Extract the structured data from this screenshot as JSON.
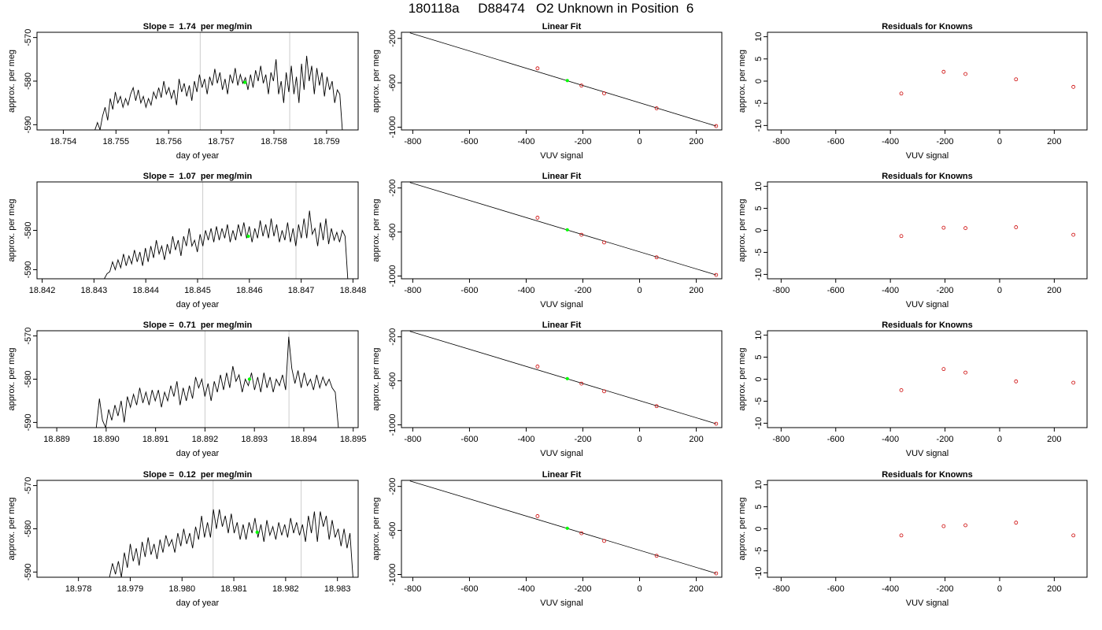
{
  "page_title": "180118a     D88474   O2 Unknown in Position  6",
  "chart_data": [
    {
      "type": "line",
      "row": 0,
      "col": 0,
      "title": "Slope =  1.74  per meg/min",
      "xlabel": "day of year",
      "ylabel": "approx. per meg",
      "xlim": [
        18.7535,
        18.7596
      ],
      "ylim": [
        -591.2,
        -568.8
      ],
      "xticks": [
        "18.754",
        "18.755",
        "18.756",
        "18.757",
        "18.758",
        "18.759"
      ],
      "yticks": [
        "-590",
        "-580",
        "-570"
      ],
      "vlines": [
        18.7566,
        18.7583
      ],
      "series": [
        {
          "x_start": 18.7546,
          "x_end": 18.7593,
          "y": [
            -591.2,
            -589.5,
            -591.2,
            -588,
            -586,
            -589,
            -584,
            -586.5,
            -582.5,
            -585,
            -583.5,
            -586,
            -584,
            -585.5,
            -583,
            -581.5,
            -584.5,
            -582,
            -585,
            -583.5,
            -586,
            -584,
            -585.5,
            -582.5,
            -584,
            -581.5,
            -583.8,
            -580,
            -583,
            -581.5,
            -584,
            -582,
            -585.5,
            -579.5,
            -582.5,
            -580.5,
            -583.5,
            -581,
            -584.5,
            -580,
            -582.5,
            -578.5,
            -581.5,
            -579.5,
            -583,
            -579,
            -581,
            -577.2,
            -580.5,
            -578,
            -582,
            -579.5,
            -583,
            -578.5,
            -580.5,
            -577,
            -581,
            -578.5,
            -580.5,
            -579.2,
            -582,
            -578.5,
            -581.5,
            -577.5,
            -580,
            -576.5,
            -580.5,
            -578.5,
            -583,
            -578,
            -580,
            -575,
            -583,
            -580,
            -585,
            -578,
            -582.5,
            -576.5,
            -583,
            -579,
            -585,
            -576,
            -582,
            -574.2,
            -580,
            -576.5,
            -583,
            -577,
            -581,
            -578,
            -583.5,
            -579,
            -582,
            -580,
            -585,
            -582,
            -583,
            -591.2
          ]
        }
      ],
      "marker": {
        "x": 18.75745,
        "y": -580.3,
        "color": "#00ff00"
      }
    },
    {
      "type": "scatter",
      "row": 0,
      "col": 1,
      "title": "Linear Fit",
      "xlabel": "VUV signal",
      "ylabel": "approx. per meg",
      "xlim": [
        -840,
        290
      ],
      "ylim": [
        -1025,
        -145
      ],
      "xticks": [
        "-800",
        "-600",
        "-400",
        "-200",
        "0",
        "200"
      ],
      "yticks": [
        "-1000",
        "-600",
        "-200"
      ],
      "fit": {
        "x": [
          -810,
          270
        ],
        "y": [
          -150,
          -990
        ]
      },
      "points": {
        "x": [
          -360,
          -205,
          -125,
          60,
          270
        ],
        "y": [
          -470,
          -625,
          -695,
          -830,
          -990
        ],
        "color": "#cc0000"
      },
      "marker": {
        "x": -255,
        "y": -580,
        "color": "#00ff00"
      }
    },
    {
      "type": "scatter",
      "row": 0,
      "col": 2,
      "title": "Residuals for Knowns",
      "xlabel": "VUV signal",
      "ylabel": "",
      "xlim": [
        -850,
        320
      ],
      "ylim": [
        -11,
        11
      ],
      "xticks": [
        "-800",
        "-600",
        "-400",
        "-200",
        "0",
        "200"
      ],
      "yticks": [
        "-10",
        "-5",
        "0",
        "5",
        "10"
      ],
      "points": {
        "x": [
          -360,
          -205,
          -125,
          60,
          270
        ],
        "y": [
          -2.8,
          2.1,
          1.6,
          0.4,
          -1.3
        ],
        "color": "#cc0000"
      }
    },
    {
      "type": "line",
      "row": 1,
      "col": 0,
      "title": "Slope =  1.07  per meg/min",
      "xlabel": "day of year",
      "ylabel": "approx. per meg",
      "xlim": [
        18.8419,
        18.8481
      ],
      "ylim": [
        -592.3,
        -567.7
      ],
      "xticks": [
        "18.842",
        "18.843",
        "18.844",
        "18.845",
        "18.846",
        "18.847",
        "18.848"
      ],
      "yticks": [
        "-590",
        "-580"
      ],
      "vlines": [
        18.8451,
        18.8469
      ],
      "series": [
        {
          "x_start": 18.8432,
          "x_end": 18.8479,
          "y": [
            -592.3,
            -591,
            -590.5,
            -588,
            -590,
            -587.5,
            -589.5,
            -586,
            -589,
            -586.5,
            -588.5,
            -585,
            -588,
            -585.5,
            -589,
            -584.5,
            -588,
            -584,
            -587,
            -582.5,
            -586,
            -584,
            -587.5,
            -583.5,
            -586,
            -581.5,
            -585,
            -582.5,
            -586.5,
            -581.5,
            -584,
            -579.5,
            -584,
            -582.5,
            -585.5,
            -581,
            -584,
            -580,
            -582.5,
            -579.5,
            -583,
            -579,
            -582.5,
            -579.5,
            -582,
            -578.5,
            -583,
            -580,
            -582.5,
            -578.5,
            -581.5,
            -578,
            -582,
            -579,
            -583,
            -579.5,
            -582,
            -577.5,
            -581.5,
            -578.5,
            -582,
            -577,
            -581.5,
            -578.5,
            -583,
            -580,
            -582.5,
            -578,
            -583,
            -579.5,
            -584,
            -578.5,
            -582,
            -577,
            -582,
            -575,
            -581,
            -579.5,
            -584,
            -578,
            -582.5,
            -577,
            -583.5,
            -579.5,
            -582.5,
            -580.5,
            -583,
            -580,
            -581.5,
            -592.3
          ]
        }
      ],
      "marker": {
        "x": 18.84598,
        "y": -581.5,
        "color": "#00ff00"
      }
    },
    {
      "type": "scatter",
      "row": 1,
      "col": 1,
      "title": "Linear Fit",
      "xlabel": "VUV signal",
      "ylabel": "approx. per meg",
      "xlim": [
        -840,
        290
      ],
      "ylim": [
        -1025,
        -145
      ],
      "xticks": [
        "-800",
        "-600",
        "-400",
        "-200",
        "0",
        "200"
      ],
      "yticks": [
        "-1000",
        "-600",
        "-200"
      ],
      "fit": {
        "x": [
          -810,
          270
        ],
        "y": [
          -150,
          -990
        ]
      },
      "points": {
        "x": [
          -360,
          -205,
          -125,
          60,
          270
        ],
        "y": [
          -470,
          -625,
          -695,
          -830,
          -990
        ],
        "color": "#cc0000"
      },
      "marker": {
        "x": -255,
        "y": -580,
        "color": "#00ff00"
      }
    },
    {
      "type": "scatter",
      "row": 1,
      "col": 2,
      "title": "Residuals for Knowns",
      "xlabel": "VUV signal",
      "ylabel": "",
      "xlim": [
        -850,
        320
      ],
      "ylim": [
        -11,
        11
      ],
      "xticks": [
        "-800",
        "-600",
        "-400",
        "-200",
        "0",
        "200"
      ],
      "yticks": [
        "-10",
        "-5",
        "0",
        "5",
        "10"
      ],
      "points": {
        "x": [
          -360,
          -205,
          -125,
          60,
          270
        ],
        "y": [
          -1.3,
          0.6,
          0.5,
          0.7,
          -1.0
        ],
        "color": "#cc0000"
      }
    },
    {
      "type": "line",
      "row": 2,
      "col": 0,
      "title": "Slope =  0.71  per meg/min",
      "xlabel": "day of year",
      "ylabel": "approx. per meg",
      "xlim": [
        18.8886,
        18.8951
      ],
      "ylim": [
        -591.2,
        -568.8
      ],
      "xticks": [
        "18.889",
        "18.890",
        "18.891",
        "18.892",
        "18.893",
        "18.894",
        "18.895"
      ],
      "yticks": [
        "-590",
        "-580",
        "-570"
      ],
      "vlines": [
        18.892,
        18.8937
      ],
      "series": [
        {
          "x_start": 18.8898,
          "x_end": 18.8947,
          "y": [
            -591.2,
            -584.5,
            -589.5,
            -591.2,
            -587,
            -589.5,
            -586,
            -588.5,
            -585,
            -590,
            -584,
            -586.5,
            -583.5,
            -586,
            -582,
            -585.5,
            -583,
            -586,
            -582.5,
            -585,
            -582.5,
            -586.5,
            -583,
            -585,
            -581.5,
            -584,
            -580.5,
            -586,
            -582,
            -585,
            -581.5,
            -584.5,
            -579.5,
            -582,
            -580,
            -584,
            -581,
            -585,
            -580.5,
            -583,
            -579,
            -582.5,
            -578.5,
            -582,
            -577,
            -580.5,
            -579,
            -583,
            -580,
            -581.5,
            -578.5,
            -582.5,
            -579.5,
            -583,
            -578.5,
            -582,
            -579.5,
            -583,
            -580,
            -581.5,
            -579,
            -582.5,
            -570.2,
            -577.5,
            -581,
            -578,
            -582,
            -578.5,
            -581.5,
            -580,
            -582.5,
            -579,
            -582,
            -579.5,
            -581.5,
            -580,
            -582,
            -583,
            -591.2
          ]
        }
      ],
      "marker": {
        "x": 18.8929,
        "y": -580.0,
        "color": "#00ff00"
      }
    },
    {
      "type": "scatter",
      "row": 2,
      "col": 1,
      "title": "Linear Fit",
      "xlabel": "VUV signal",
      "ylabel": "approx. per meg",
      "xlim": [
        -840,
        290
      ],
      "ylim": [
        -1025,
        -145
      ],
      "xticks": [
        "-800",
        "-600",
        "-400",
        "-200",
        "0",
        "200"
      ],
      "yticks": [
        "-1000",
        "-600",
        "-200"
      ],
      "fit": {
        "x": [
          -810,
          270
        ],
        "y": [
          -150,
          -990
        ]
      },
      "points": {
        "x": [
          -360,
          -205,
          -125,
          60,
          270
        ],
        "y": [
          -470,
          -625,
          -695,
          -830,
          -990
        ],
        "color": "#cc0000"
      },
      "marker": {
        "x": -255,
        "y": -580,
        "color": "#00ff00"
      }
    },
    {
      "type": "scatter",
      "row": 2,
      "col": 2,
      "title": "Residuals for Knowns",
      "xlabel": "VUV signal",
      "ylabel": "",
      "xlim": [
        -850,
        320
      ],
      "ylim": [
        -11,
        11
      ],
      "xticks": [
        "-800",
        "-600",
        "-400",
        "-200",
        "0",
        "200"
      ],
      "yticks": [
        "-10",
        "-5",
        "0",
        "5",
        "10"
      ],
      "points": {
        "x": [
          -360,
          -205,
          -125,
          60,
          270
        ],
        "y": [
          -2.5,
          2.3,
          1.5,
          -0.5,
          -0.8
        ],
        "color": "#cc0000"
      }
    },
    {
      "type": "line",
      "row": 3,
      "col": 0,
      "title": "Slope =  0.12  per meg/min",
      "xlabel": "day of year",
      "ylabel": "approx. per meg",
      "xlim": [
        18.9772,
        18.9834
      ],
      "ylim": [
        -591.2,
        -568.8
      ],
      "xticks": [
        "18.978",
        "18.979",
        "18.980",
        "18.981",
        "18.982",
        "18.983"
      ],
      "yticks": [
        "-590",
        "-580",
        "-570"
      ],
      "vlines": [
        18.9806,
        18.9823
      ],
      "series": [
        {
          "x_start": 18.9786,
          "x_end": 18.9833,
          "y": [
            -591.2,
            -588,
            -590.5,
            -587.5,
            -591.2,
            -585.5,
            -589,
            -583.5,
            -587.5,
            -584.5,
            -588.5,
            -583,
            -586.5,
            -582,
            -586,
            -583.5,
            -587,
            -582.5,
            -585.5,
            -581.5,
            -584,
            -582.5,
            -585.5,
            -581,
            -584,
            -580,
            -583.5,
            -581,
            -584.5,
            -579.5,
            -582.5,
            -577,
            -582,
            -578.5,
            -582,
            -575.5,
            -580,
            -575.5,
            -579.5,
            -577,
            -581,
            -576.5,
            -581,
            -578.5,
            -582.5,
            -579,
            -582.5,
            -578.5,
            -581,
            -577.5,
            -582,
            -579,
            -583,
            -578,
            -581.5,
            -579.5,
            -582.5,
            -578.5,
            -581.5,
            -579,
            -582,
            -577.5,
            -581,
            -578.5,
            -581.5,
            -579,
            -583,
            -577,
            -581,
            -576,
            -583,
            -576,
            -579.5,
            -577,
            -582.5,
            -578,
            -582,
            -580,
            -584,
            -580,
            -584.5,
            -581,
            -591.2
          ]
        }
      ],
      "marker": {
        "x": 18.98145,
        "y": -580.8,
        "color": "#00ff00"
      }
    },
    {
      "type": "scatter",
      "row": 3,
      "col": 1,
      "title": "Linear Fit",
      "xlabel": "VUV signal",
      "ylabel": "approx. per meg",
      "xlim": [
        -840,
        290
      ],
      "ylim": [
        -1025,
        -145
      ],
      "xticks": [
        "-800",
        "-600",
        "-400",
        "-200",
        "0",
        "200"
      ],
      "yticks": [
        "-1000",
        "-600",
        "-200"
      ],
      "fit": {
        "x": [
          -810,
          270
        ],
        "y": [
          -150,
          -990
        ]
      },
      "points": {
        "x": [
          -360,
          -205,
          -125,
          60,
          270
        ],
        "y": [
          -470,
          -625,
          -695,
          -830,
          -990
        ],
        "color": "#cc0000"
      },
      "marker": {
        "x": -255,
        "y": -580,
        "color": "#00ff00"
      }
    },
    {
      "type": "scatter",
      "row": 3,
      "col": 2,
      "title": "Residuals for Knowns",
      "xlabel": "VUV signal",
      "ylabel": "",
      "xlim": [
        -850,
        320
      ],
      "ylim": [
        -11,
        11
      ],
      "xticks": [
        "-800",
        "-600",
        "-400",
        "-200",
        "0",
        "200"
      ],
      "yticks": [
        "-10",
        "-5",
        "0",
        "5",
        "10"
      ],
      "points": {
        "x": [
          -360,
          -205,
          -125,
          60,
          270
        ],
        "y": [
          -1.5,
          0.6,
          0.8,
          1.4,
          -1.5
        ],
        "color": "#cc0000"
      }
    }
  ]
}
